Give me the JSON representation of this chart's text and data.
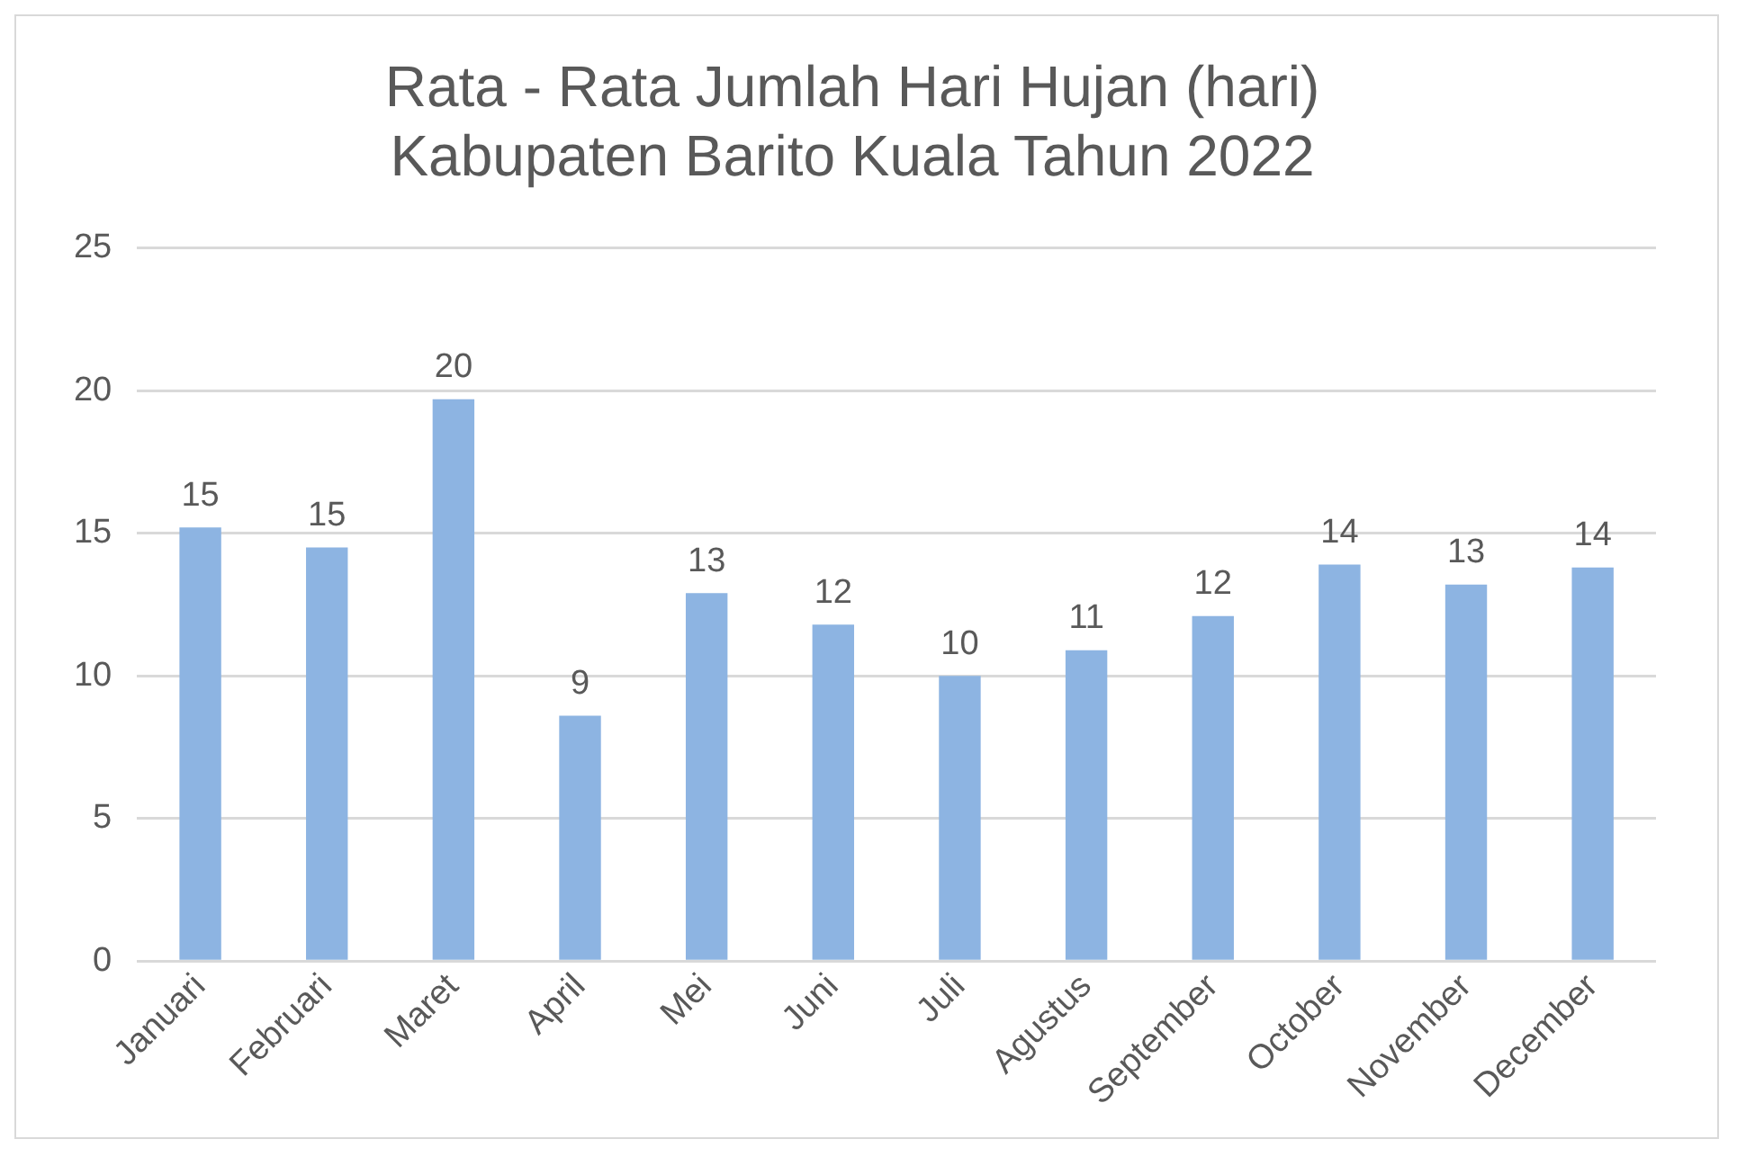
{
  "chart_data": {
    "type": "bar",
    "title": "Rata - Rata Jumlah Hari Hujan (hari)\nKabupaten Barito Kuala Tahun 2022",
    "categories": [
      "Januari",
      "Februari",
      "Maret",
      "April",
      "Mei",
      "Juni",
      "Juli",
      "Agustus",
      "September",
      "October",
      "November",
      "December"
    ],
    "values": [
      15.2,
      14.5,
      19.7,
      8.6,
      12.9,
      11.8,
      10.0,
      10.9,
      12.1,
      13.9,
      13.2,
      13.8
    ],
    "value_labels": [
      "15",
      "15",
      "20",
      "9",
      "13",
      "12",
      "10",
      "11",
      "12",
      "14",
      "13",
      "14"
    ],
    "color": "#8db4e2",
    "ylim": [
      0,
      25
    ],
    "yticks": [
      0,
      5,
      10,
      15,
      20,
      25
    ],
    "grid": "y",
    "legend": false
  }
}
